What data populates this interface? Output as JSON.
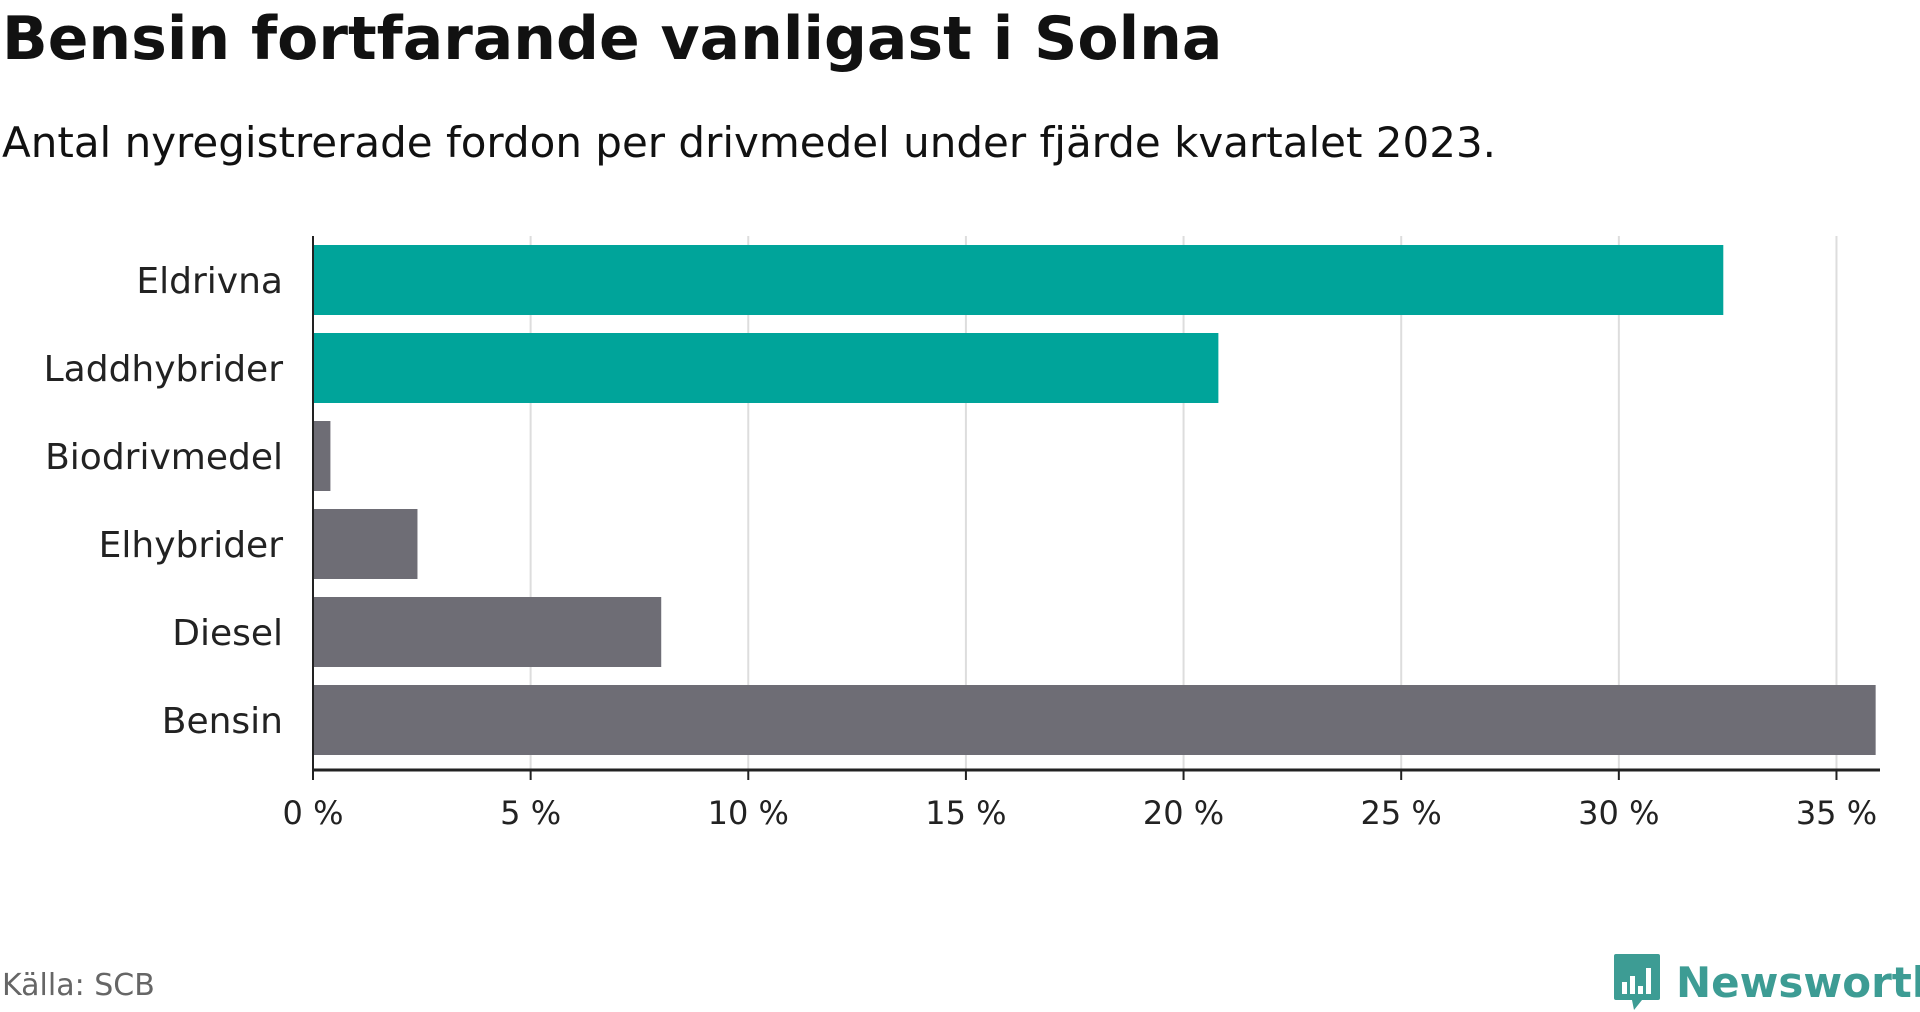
{
  "header": {
    "title": "Bensin fortfarande vanligast i Solna",
    "subtitle": "Antal nyregistrerade fordon per drivmedel under fjärde kvartalet 2023."
  },
  "footer": {
    "source": "Källa: SCB",
    "brand": "Newsworthy"
  },
  "colors": {
    "highlight": "#00a49a",
    "neutral": "#6e6d75",
    "grid": "#dddddd",
    "axis": "#222222",
    "brand": "#3d9c94"
  },
  "chart_data": {
    "type": "bar",
    "orientation": "horizontal",
    "title": "Bensin fortfarande vanligast i Solna",
    "subtitle": "Antal nyregistrerade fordon per drivmedel under fjärde kvartalet 2023.",
    "xlabel": "",
    "ylabel": "",
    "xlim": [
      0,
      36
    ],
    "x_ticks": [
      0,
      5,
      10,
      15,
      20,
      25,
      30,
      35
    ],
    "x_tick_labels": [
      "0 %",
      "5 %",
      "10 %",
      "15 %",
      "20 %",
      "25 %",
      "30 %",
      "35 %"
    ],
    "grid": true,
    "categories": [
      "Eldrivna",
      "Laddhybrider",
      "Biodrivmedel",
      "Elhybrider",
      "Diesel",
      "Bensin"
    ],
    "values": [
      32.4,
      20.8,
      0.4,
      2.4,
      8.0,
      35.9
    ],
    "highlighted": [
      true,
      true,
      false,
      false,
      false,
      false
    ]
  }
}
